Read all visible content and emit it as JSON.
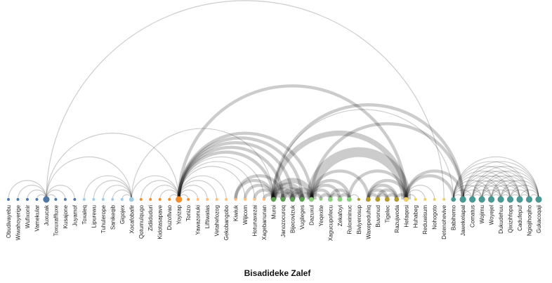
{
  "title": "Bisadideke Zalef",
  "nodes": [
    {
      "label": "Obudivayebu",
      "color": "#4e79a7",
      "size": 1
    },
    {
      "label": "Wiwahoyerige",
      "color": "#4e79a7",
      "size": 1
    },
    {
      "label": "Wufixonir",
      "color": "#4e79a7",
      "size": 1
    },
    {
      "label": "Vamekular",
      "color": "#4e79a7",
      "size": 1
    },
    {
      "label": "Juxucak",
      "color": "#4e79a7",
      "size": 3
    },
    {
      "label": "Toxuxaffluxe",
      "color": "#4e79a7",
      "size": 1
    },
    {
      "label": "Kusajone",
      "color": "#4e79a7",
      "size": 1
    },
    {
      "label": "Juyamof",
      "color": "#4e79a7",
      "size": 1
    },
    {
      "label": "Toxaleq",
      "color": "#a0cbe8",
      "size": 1
    },
    {
      "label": "Lipurewu",
      "color": "#a0cbe8",
      "size": 1
    },
    {
      "label": "Tuhulerope",
      "color": "#a0cbe8",
      "size": 1
    },
    {
      "label": "Sanikeqib",
      "color": "#a0cbe8",
      "size": 1
    },
    {
      "label": "Gigojex",
      "color": "#a0cbe8",
      "size": 1
    },
    {
      "label": "Xocafobafir",
      "color": "#a0cbe8",
      "size": 2
    },
    {
      "label": "Qotumulqugo",
      "color": "#f28e2b",
      "size": 1
    },
    {
      "label": "Zidiiduduri",
      "color": "#f28e2b",
      "size": 1
    },
    {
      "label": "Kidotasapave",
      "color": "#f28e2b",
      "size": 1
    },
    {
      "label": "Duzofivao",
      "color": "#f28e2b",
      "size": 1
    },
    {
      "label": "Yoyizap",
      "color": "#f28e2b",
      "size": 3
    },
    {
      "label": "Tonizo",
      "color": "#f28e2b",
      "size": 1
    },
    {
      "label": "Yawazonuki",
      "color": "#ffbe7d",
      "size": 1
    },
    {
      "label": "Liftiwatas",
      "color": "#ffbe7d",
      "size": 1
    },
    {
      "label": "Vetahefozog",
      "color": "#ffbe7d",
      "size": 1
    },
    {
      "label": "Gekobangobo",
      "color": "#ffbe7d",
      "size": 1
    },
    {
      "label": "Kiwiuk",
      "color": "#ffbe7d",
      "size": 1
    },
    {
      "label": "Wijicom",
      "color": "#ffbe7d",
      "size": 1
    },
    {
      "label": "Hotunaxezai",
      "color": "#ffbe7d",
      "size": 1
    },
    {
      "label": "Xagebanunan",
      "color": "#ffbe7d",
      "size": 1
    },
    {
      "label": "Muroi",
      "color": "#59a14f",
      "size": 2
    },
    {
      "label": "Janozocuroq",
      "color": "#59a14f",
      "size": 2
    },
    {
      "label": "Bijecovizuk",
      "color": "#59a14f",
      "size": 2
    },
    {
      "label": "Vugileges",
      "color": "#59a14f",
      "size": 2
    },
    {
      "label": "Dazuxul",
      "color": "#8cd17d",
      "size": 2
    },
    {
      "label": "Yeqexite",
      "color": "#8cd17d",
      "size": 1
    },
    {
      "label": "Xagucupofecu",
      "color": "#8cd17d",
      "size": 2
    },
    {
      "label": "Zekafoyi",
      "color": "#8cd17d",
      "size": 2
    },
    {
      "label": "Ruloxininuc",
      "color": "#8cd17d",
      "size": 2
    },
    {
      "label": "Biviyerosup",
      "color": "#b6992d",
      "size": 1
    },
    {
      "label": "Waxepeduhiq",
      "color": "#b6992d",
      "size": 2
    },
    {
      "label": "Buvonud",
      "color": "#b6992d",
      "size": 2
    },
    {
      "label": "Tigelec",
      "color": "#b6992d",
      "size": 2
    },
    {
      "label": "Razujwoda",
      "color": "#b6992d",
      "size": 2
    },
    {
      "label": "Hefaqesi",
      "color": "#f1ce63",
      "size": 2
    },
    {
      "label": "Huhabeg",
      "color": "#f1ce63",
      "size": 1
    },
    {
      "label": "Reduwisum",
      "color": "#f1ce63",
      "size": 1
    },
    {
      "label": "Nohogoto",
      "color": "#f1ce63",
      "size": 1
    },
    {
      "label": "Detenohevive",
      "color": "#f1ce63",
      "size": 1
    },
    {
      "label": "Babihemo",
      "color": "#499894",
      "size": 2
    },
    {
      "label": "Jawekelapal",
      "color": "#499894",
      "size": 3
    },
    {
      "label": "Comatus",
      "color": "#499894",
      "size": 3
    },
    {
      "label": "Wojimu",
      "color": "#499894",
      "size": 3
    },
    {
      "label": "Woyejel",
      "color": "#499894",
      "size": 3
    },
    {
      "label": "Dukudehuu",
      "color": "#499894",
      "size": 3
    },
    {
      "label": "Qixizihfopa",
      "color": "#499894",
      "size": 3
    },
    {
      "label": "Cadufepuf",
      "color": "#499894",
      "size": 3
    },
    {
      "label": "Ngiojihoqiho",
      "color": "#499894",
      "size": 3
    },
    {
      "label": "Gukacoqaji",
      "color": "#499894",
      "size": 3
    }
  ],
  "links": [
    [
      4,
      0,
      1
    ],
    [
      4,
      1,
      1
    ],
    [
      4,
      2,
      1
    ],
    [
      4,
      3,
      1
    ],
    [
      4,
      5,
      1
    ],
    [
      4,
      6,
      1
    ],
    [
      4,
      7,
      1
    ],
    [
      4,
      13,
      1
    ],
    [
      4,
      18,
      1
    ],
    [
      4,
      46,
      1
    ],
    [
      13,
      8,
      1
    ],
    [
      13,
      9,
      1
    ],
    [
      13,
      10,
      1
    ],
    [
      13,
      11,
      1
    ],
    [
      13,
      12,
      1
    ],
    [
      13,
      18,
      1
    ],
    [
      13,
      28,
      1
    ],
    [
      18,
      14,
      1
    ],
    [
      18,
      15,
      1
    ],
    [
      18,
      16,
      1
    ],
    [
      18,
      17,
      1
    ],
    [
      18,
      19,
      1
    ],
    [
      18,
      20,
      1
    ],
    [
      18,
      21,
      1
    ],
    [
      18,
      22,
      1
    ],
    [
      18,
      23,
      1
    ],
    [
      18,
      25,
      1
    ],
    [
      18,
      26,
      1
    ],
    [
      18,
      27,
      1
    ],
    [
      18,
      28,
      2
    ],
    [
      18,
      29,
      2
    ],
    [
      18,
      30,
      2
    ],
    [
      18,
      31,
      2
    ],
    [
      18,
      32,
      2
    ],
    [
      18,
      42,
      2
    ],
    [
      24,
      28,
      2
    ],
    [
      24,
      29,
      2
    ],
    [
      25,
      28,
      2
    ],
    [
      26,
      28,
      2
    ],
    [
      27,
      28,
      2
    ],
    [
      28,
      29,
      3
    ],
    [
      28,
      30,
      3
    ],
    [
      28,
      31,
      3
    ],
    [
      28,
      32,
      3
    ],
    [
      28,
      42,
      3
    ],
    [
      28,
      47,
      1
    ],
    [
      29,
      30,
      3
    ],
    [
      29,
      31,
      3
    ],
    [
      30,
      31,
      3
    ],
    [
      30,
      32,
      3
    ],
    [
      31,
      32,
      3
    ],
    [
      32,
      33,
      2
    ],
    [
      32,
      34,
      2
    ],
    [
      32,
      35,
      2
    ],
    [
      32,
      36,
      2
    ],
    [
      32,
      38,
      2
    ],
    [
      32,
      42,
      5
    ],
    [
      33,
      34,
      2
    ],
    [
      34,
      35,
      2
    ],
    [
      34,
      36,
      2
    ],
    [
      35,
      36,
      2
    ],
    [
      36,
      37,
      1
    ],
    [
      36,
      42,
      2
    ],
    [
      38,
      39,
      2
    ],
    [
      38,
      40,
      2
    ],
    [
      38,
      41,
      2
    ],
    [
      38,
      42,
      2
    ],
    [
      39,
      40,
      2
    ],
    [
      39,
      41,
      2
    ],
    [
      40,
      41,
      2
    ],
    [
      41,
      42,
      2
    ],
    [
      42,
      43,
      1
    ],
    [
      42,
      44,
      1
    ],
    [
      42,
      45,
      1
    ],
    [
      42,
      47,
      2
    ],
    [
      42,
      48,
      2
    ],
    [
      28,
      48,
      2
    ],
    [
      32,
      48,
      2
    ],
    [
      47,
      48,
      1
    ],
    [
      47,
      49,
      1
    ],
    [
      47,
      50,
      1
    ],
    [
      47,
      51,
      1
    ],
    [
      47,
      52,
      1
    ],
    [
      47,
      53,
      1
    ],
    [
      47,
      54,
      1
    ],
    [
      47,
      55,
      1
    ],
    [
      47,
      56,
      1
    ],
    [
      48,
      49,
      1
    ],
    [
      48,
      50,
      1
    ],
    [
      48,
      51,
      1
    ],
    [
      48,
      52,
      1
    ],
    [
      48,
      53,
      1
    ],
    [
      48,
      54,
      1
    ],
    [
      48,
      55,
      1
    ],
    [
      48,
      56,
      1
    ],
    [
      49,
      50,
      1
    ],
    [
      49,
      51,
      1
    ],
    [
      49,
      52,
      1
    ],
    [
      49,
      53,
      1
    ],
    [
      49,
      54,
      1
    ],
    [
      49,
      55,
      1
    ],
    [
      49,
      56,
      1
    ],
    [
      50,
      51,
      1
    ],
    [
      50,
      52,
      1
    ],
    [
      50,
      53,
      1
    ],
    [
      50,
      54,
      1
    ],
    [
      50,
      55,
      1
    ],
    [
      50,
      56,
      1
    ],
    [
      51,
      52,
      1
    ],
    [
      51,
      53,
      1
    ],
    [
      51,
      54,
      1
    ],
    [
      51,
      55,
      1
    ],
    [
      51,
      56,
      1
    ],
    [
      52,
      53,
      1
    ],
    [
      52,
      54,
      1
    ],
    [
      52,
      55,
      1
    ],
    [
      52,
      56,
      1
    ],
    [
      53,
      54,
      1
    ],
    [
      53,
      55,
      1
    ],
    [
      53,
      56,
      1
    ],
    [
      54,
      55,
      1
    ],
    [
      54,
      56,
      1
    ],
    [
      55,
      56,
      1
    ]
  ]
}
